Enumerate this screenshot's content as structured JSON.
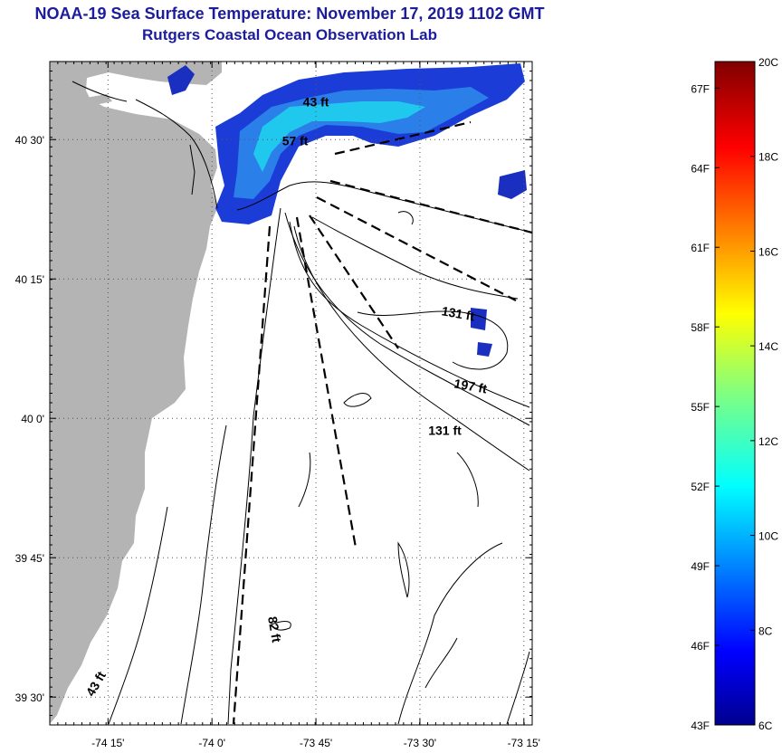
{
  "title": "NOAA-19 Sea Surface Temperature:  November 17, 2019 1102 GMT",
  "subtitle": "Rutgers Coastal Ocean Observation Lab",
  "map": {
    "lat_ticks": [
      {
        "label": "40 30'",
        "lat": 40.5
      },
      {
        "label": "40 15'",
        "lat": 40.25
      },
      {
        "label": "40 0'",
        "lat": 40.0
      },
      {
        "label": "39 45'",
        "lat": 39.75
      },
      {
        "label": "39 30'",
        "lat": 39.5
      }
    ],
    "lon_ticks": [
      {
        "label": "-74 15'",
        "lon": -74.25
      },
      {
        "label": "-74 0'",
        "lon": -74.0
      },
      {
        "label": "-73 45'",
        "lon": -73.75
      },
      {
        "label": "-73 30'",
        "lon": -73.5
      },
      {
        "label": "-73 15'",
        "lon": -73.25
      }
    ],
    "lon_range": [
      -74.39,
      -73.23
    ],
    "lat_range": [
      39.45,
      40.64
    ],
    "grid": true,
    "land_color": "#b4b4b4",
    "depth_labels": [
      {
        "text": "43 ft",
        "lon": -73.75,
        "lat": 40.56,
        "rotate": 0
      },
      {
        "text": "57 ft",
        "lon": -73.8,
        "lat": 40.49,
        "rotate": 0
      },
      {
        "text": "131 ft",
        "lon": -73.41,
        "lat": 40.18,
        "rotate": 10
      },
      {
        "text": "197 ft",
        "lon": -73.38,
        "lat": 40.05,
        "rotate": 10
      },
      {
        "text": "131 ft",
        "lon": -73.44,
        "lat": 39.97,
        "rotate": 0
      },
      {
        "text": "82 ft",
        "lon": -73.86,
        "lat": 39.62,
        "rotate": 80
      },
      {
        "text": "43 ft",
        "lon": -74.27,
        "lat": 39.52,
        "rotate": -60
      }
    ]
  },
  "colorbar": {
    "colormap": "jet",
    "c_range": [
      6,
      20
    ],
    "f_range": [
      43,
      68
    ],
    "c_labels": [
      "20C",
      "18C",
      "16C",
      "14C",
      "12C",
      "10C",
      "8C",
      "6C"
    ],
    "c_values": [
      20,
      18,
      16,
      14,
      12,
      10,
      8,
      6
    ],
    "f_labels": [
      "67F",
      "64F",
      "61F",
      "58F",
      "55F",
      "52F",
      "49F",
      "46F",
      "43F"
    ],
    "f_values": [
      67,
      64,
      61,
      58,
      55,
      52,
      49,
      46,
      43
    ]
  }
}
